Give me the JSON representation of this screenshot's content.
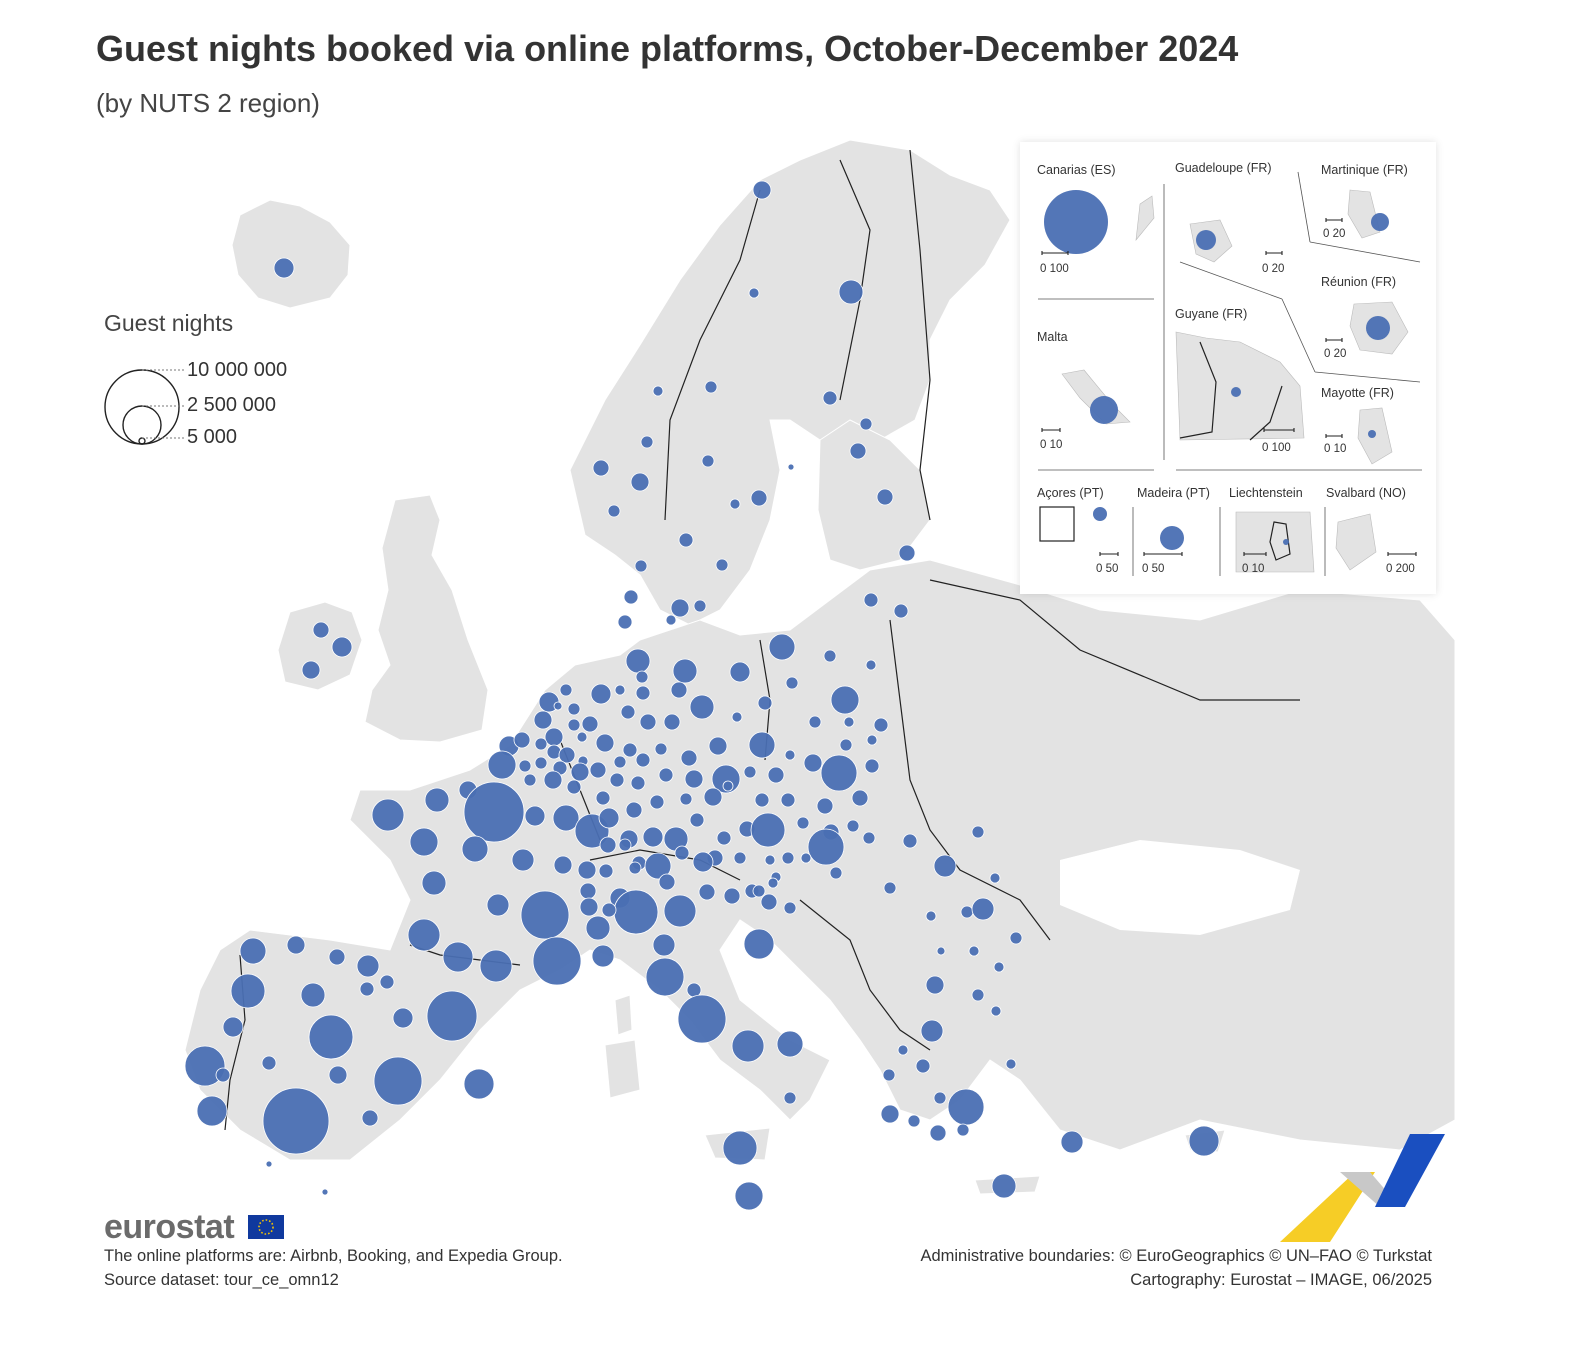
{
  "title": "Guest nights booked via online platforms, October-December 2024",
  "subtitle": "(by NUTS 2 region)",
  "colors": {
    "bubble": "#4a6fb3",
    "land": "#e3e3e3",
    "sea": "#ffffff",
    "border": "#222222"
  },
  "legend": {
    "title": "Guest nights",
    "entries": [
      {
        "label": "10 000 000",
        "value": 10000000
      },
      {
        "label": "2 500 000",
        "value": 2500000
      },
      {
        "label": "5 000",
        "value": 5000
      }
    ]
  },
  "insets": [
    {
      "name": "Canarias (ES)",
      "scale": "0   100"
    },
    {
      "name": "Guadeloupe (FR)",
      "scale": "0  20"
    },
    {
      "name": "Martinique (FR)",
      "scale": "0  20"
    },
    {
      "name": "Malta",
      "scale": "0  10"
    },
    {
      "name": "Guyane (FR)",
      "scale": "0   100"
    },
    {
      "name": "Réunion (FR)",
      "scale": "0  20"
    },
    {
      "name": "Mayotte (FR)",
      "scale": "0 10"
    },
    {
      "name": "Açores (PT)",
      "scale": "0  50"
    },
    {
      "name": "Madeira (PT)",
      "scale": "0    50"
    },
    {
      "name": "Liechtenstein",
      "scale": "0  10"
    },
    {
      "name": "Svalbard (NO)",
      "scale": "0    200"
    }
  ],
  "footer": {
    "logo": "eurostat",
    "note": "The online platforms are: Airbnb, Booking, and Expedia Group.",
    "source": "Source dataset: tour_ce_omn12",
    "boundaries": "Administrative boundaries: © EuroGeographics © UN–FAO © Turkstat",
    "cartography": "Cartography: Eurostat – IMAGE, 06/2025"
  }
}
